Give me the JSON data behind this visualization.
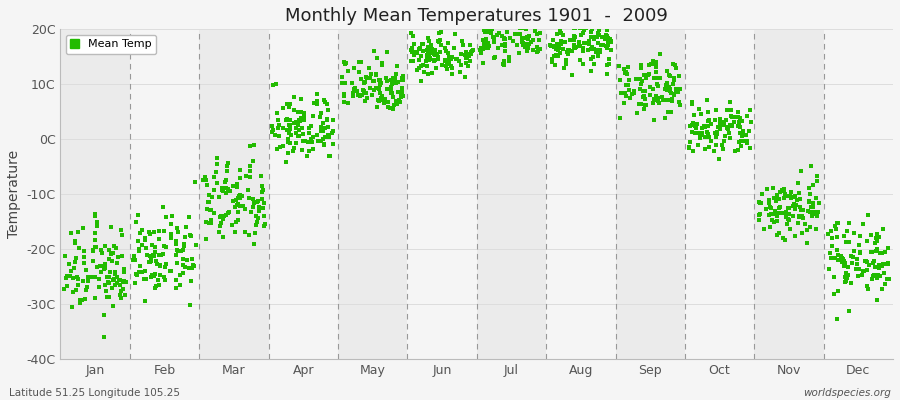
{
  "title": "Monthly Mean Temperatures 1901  -  2009",
  "ylabel": "Temperature",
  "subtitle_left": "Latitude 51.25 Longitude 105.25",
  "subtitle_right": "worldspecies.org",
  "background_color": "#f5f5f5",
  "plot_bg_even": "#ebebeb",
  "plot_bg_odd": "#f5f5f5",
  "dot_color": "#22bb00",
  "dot_size": 5,
  "ylim": [
    -40,
    20
  ],
  "yticks": [
    -40,
    -30,
    -20,
    -10,
    0,
    10,
    20
  ],
  "ytick_labels": [
    "-40C",
    "-30C",
    "-20C",
    "-10C",
    "0C",
    "10C",
    "20C"
  ],
  "months": [
    "Jan",
    "Feb",
    "Mar",
    "Apr",
    "May",
    "Jun",
    "Jul",
    "Aug",
    "Sep",
    "Oct",
    "Nov",
    "Dec"
  ],
  "monthly_mean_temps": {
    "Jan": -24.0,
    "Feb": -21.5,
    "Mar": -11.5,
    "Apr": 2.0,
    "May": 10.0,
    "Jun": 15.5,
    "Jul": 18.5,
    "Aug": 17.0,
    "Sep": 9.5,
    "Oct": 1.5,
    "Nov": -12.5,
    "Dec": -21.5
  },
  "monthly_std_temps": {
    "Jan": 4.0,
    "Feb": 3.5,
    "Mar": 4.0,
    "Apr": 3.0,
    "May": 2.5,
    "Jun": 2.0,
    "Jul": 2.0,
    "Aug": 2.0,
    "Sep": 2.5,
    "Oct": 2.5,
    "Nov": 3.0,
    "Dec": 3.5
  },
  "n_years": 109,
  "legend_label": "Mean Temp",
  "vline_color": "#999999",
  "grid_color": "#dddddd"
}
